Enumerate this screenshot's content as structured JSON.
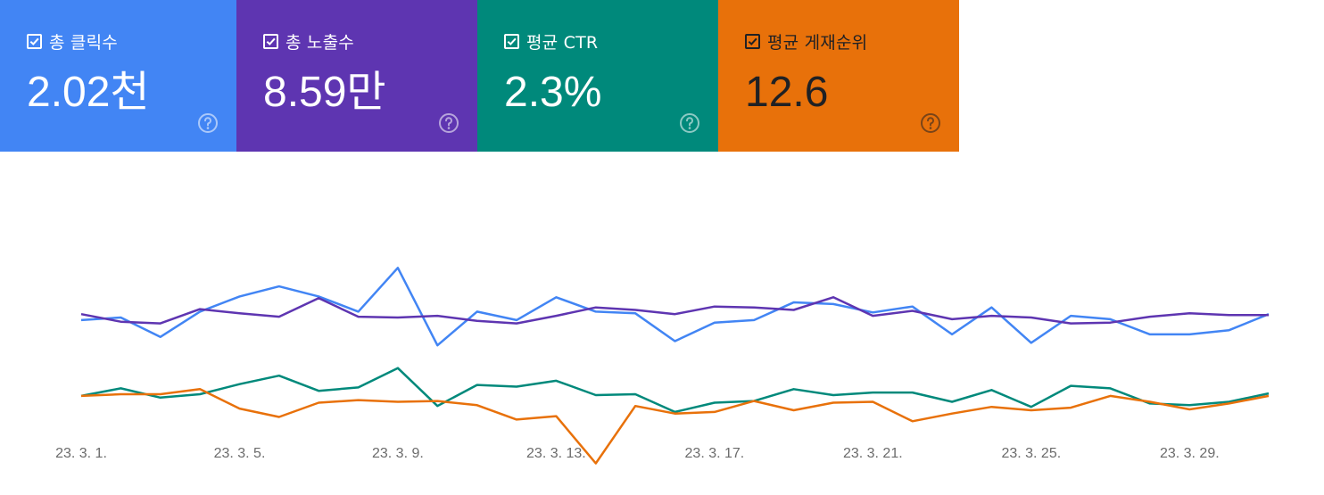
{
  "metrics": [
    {
      "label": "총 클릭수",
      "value": "2.02천",
      "bg": "#4285f4",
      "fg": "#ffffff",
      "checked": true
    },
    {
      "label": "총 노출수",
      "value": "8.59만",
      "bg": "#5e35b1",
      "fg": "#ffffff",
      "checked": true
    },
    {
      "label": "평균 CTR",
      "value": "2.3%",
      "bg": "#00897b",
      "fg": "#ffffff",
      "checked": true
    },
    {
      "label": "평균 게재순위",
      "value": "12.6",
      "bg": "#e8710a",
      "fg": "#202124",
      "checked": true
    }
  ],
  "chart_data": {
    "type": "line",
    "x": [
      "23. 3. 1.",
      "23. 3. 2.",
      "23. 3. 3.",
      "23. 3. 4.",
      "23. 3. 5.",
      "23. 3. 6.",
      "23. 3. 7.",
      "23. 3. 8.",
      "23. 3. 9.",
      "23. 3. 10.",
      "23. 3. 11.",
      "23. 3. 12.",
      "23. 3. 13.",
      "23. 3. 14.",
      "23. 3. 15.",
      "23. 3. 16.",
      "23. 3. 17.",
      "23. 3. 18.",
      "23. 3. 19.",
      "23. 3. 20.",
      "23. 3. 21.",
      "23. 3. 22.",
      "23. 3. 23.",
      "23. 3. 24.",
      "23. 3. 25.",
      "23. 3. 26.",
      "23. 3. 27.",
      "23. 3. 28.",
      "23. 3. 29.",
      "23. 3. 30.",
      "23. 3. 31."
    ],
    "x_ticks": [
      "23. 3. 1.",
      "23. 3. 5.",
      "23. 3. 9.",
      "23. 3. 13.",
      "23. 3. 17.",
      "23. 3. 21.",
      "23. 3. 25.",
      "23. 3. 29."
    ],
    "ylim": [
      0,
      100
    ],
    "grid": false,
    "series": [
      {
        "color": "#4285f4",
        "values": [
          70,
          73,
          50,
          80,
          98,
          110,
          98,
          80,
          132,
          40,
          80,
          70,
          97,
          80,
          78,
          45,
          67,
          70,
          91,
          89,
          79,
          86,
          53,
          85,
          43,
          75,
          71,
          53,
          53,
          58,
          77
        ]
      },
      {
        "color": "#5e35b1",
        "values": [
          77,
          68,
          66,
          83,
          78,
          74,
          96,
          74,
          73,
          75,
          69,
          66,
          75,
          85,
          82,
          77,
          86,
          85,
          82,
          97,
          75,
          81,
          71,
          75,
          73,
          66,
          67,
          74,
          78,
          76,
          76
        ]
      },
      {
        "color": "#00897b",
        "values": [
          -20,
          -11,
          -22,
          -18,
          -6,
          4,
          -14,
          -10,
          13,
          -32,
          -7,
          -9,
          -2,
          -19,
          -18,
          -39,
          -28,
          -26,
          -12,
          -19,
          -16,
          -16,
          -27,
          -13,
          -33,
          -8,
          -11,
          -29,
          -31,
          -27,
          -17
        ]
      },
      {
        "color": "#e8710a",
        "values": [
          -20,
          -18,
          -18,
          -12,
          -35,
          -45,
          -28,
          -25,
          -27,
          -26,
          -31,
          -48,
          -44,
          -100,
          -32,
          -41,
          -39,
          -26,
          -37,
          -28,
          -27,
          -50,
          -41,
          -33,
          -37,
          -34,
          -20,
          -27,
          -36,
          -29,
          -20
        ]
      }
    ]
  }
}
